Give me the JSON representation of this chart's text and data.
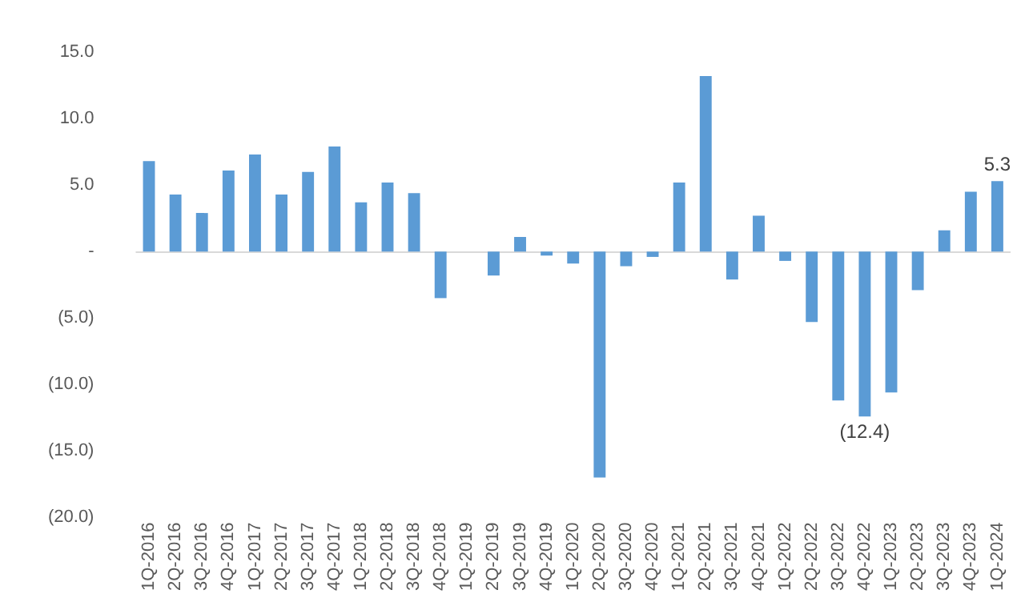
{
  "chart_data": {
    "type": "bar",
    "categories": [
      "1Q-2016",
      "2Q-2016",
      "3Q-2016",
      "4Q-2016",
      "1Q-2017",
      "2Q-2017",
      "3Q-2017",
      "4Q-2017",
      "1Q-2018",
      "2Q-2018",
      "3Q-2018",
      "4Q-2018",
      "1Q-2019",
      "2Q-2019",
      "3Q-2019",
      "4Q-2019",
      "1Q-2020",
      "2Q-2020",
      "3Q-2020",
      "4Q-2020",
      "1Q-2021",
      "2Q-2021",
      "3Q-2021",
      "4Q-2021",
      "1Q-2022",
      "2Q-2022",
      "3Q-2022",
      "4Q-2022",
      "1Q-2023",
      "2Q-2023",
      "3Q-2023",
      "4Q-2023",
      "1Q-2024"
    ],
    "values": [
      6.8,
      4.3,
      2.9,
      6.1,
      7.3,
      4.3,
      6.0,
      7.9,
      3.7,
      5.2,
      4.4,
      -3.5,
      0,
      -1.8,
      1.1,
      -0.3,
      -0.9,
      -17.0,
      -1.1,
      -0.4,
      5.2,
      13.2,
      -2.1,
      2.7,
      -0.7,
      -5.3,
      -11.2,
      -12.4,
      -10.6,
      -2.9,
      1.6,
      4.5,
      5.3
    ],
    "value_labels": [
      null,
      null,
      null,
      null,
      null,
      null,
      null,
      null,
      null,
      null,
      null,
      null,
      null,
      null,
      null,
      null,
      null,
      null,
      null,
      null,
      null,
      null,
      null,
      null,
      null,
      null,
      null,
      "(12.4)",
      null,
      null,
      null,
      null,
      "5.3"
    ],
    "color": "#5b9bd5",
    "ylim": [
      -20,
      15
    ],
    "yticks": [
      {
        "value": -20,
        "label": "(20.0)"
      },
      {
        "value": -15,
        "label": "(15.0)"
      },
      {
        "value": -10,
        "label": "(10.0)"
      },
      {
        "value": -5,
        "label": "(5.0)"
      },
      {
        "value": 0,
        "label": "-"
      },
      {
        "value": 5,
        "label": "5.0"
      },
      {
        "value": 10,
        "label": "10.0"
      },
      {
        "value": 15,
        "label": "15.0"
      }
    ],
    "ref_lines": [
      {
        "axis": "y",
        "value": 0,
        "color": "#d9d9d9"
      }
    ],
    "grid": false,
    "legend": false
  }
}
